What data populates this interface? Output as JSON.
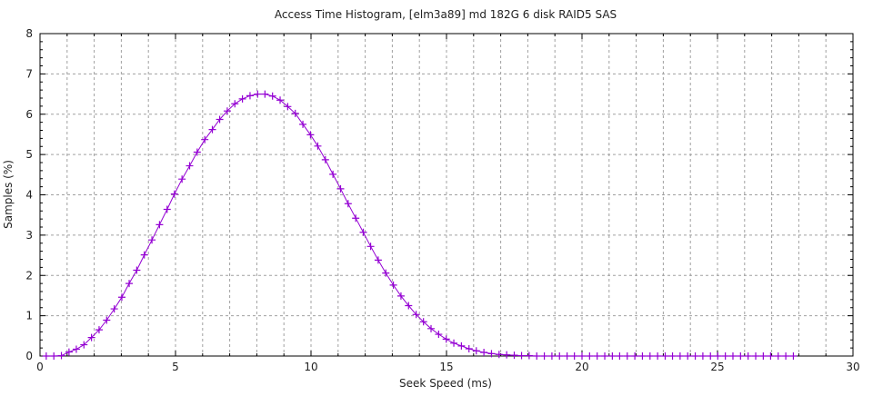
{
  "chart_data": {
    "type": "line",
    "title": "Access Time Histogram, [elm3a89] md 182G 6 disk RAID5 SAS",
    "xlabel": "Seek Speed (ms)",
    "ylabel": "Samples (%)",
    "xlim": [
      0,
      30
    ],
    "ylim": [
      0,
      8
    ],
    "xticks": [
      0,
      5,
      10,
      15,
      20,
      25,
      30
    ],
    "yticks": [
      0,
      1,
      2,
      3,
      4,
      5,
      6,
      7,
      8
    ],
    "grid": true,
    "marker": "plus",
    "color": "#9400d3",
    "series": [
      {
        "x": [
          0.23,
          0.51,
          0.79,
          1.07,
          1.34,
          1.62,
          1.9,
          2.18,
          2.46,
          2.74,
          3.02,
          3.29,
          3.57,
          3.85,
          4.13,
          4.41,
          4.69,
          4.96,
          5.24,
          5.52,
          5.8,
          6.08,
          6.36,
          6.63,
          6.91,
          7.19,
          7.47,
          7.75,
          8.03,
          8.3,
          8.58,
          8.86,
          9.14,
          9.42,
          9.7,
          9.98,
          10.25,
          10.53,
          10.81,
          11.09,
          11.37,
          11.65,
          11.93,
          12.2,
          12.48,
          12.76,
          13.04,
          13.32,
          13.6,
          13.88,
          14.15,
          14.43,
          14.71,
          14.99,
          15.27,
          15.55,
          15.83,
          16.1,
          16.38,
          16.66,
          16.94,
          17.22,
          17.5,
          17.77,
          18.05,
          18.33,
          18.61,
          18.89,
          19.17,
          19.45,
          19.72,
          20.0,
          20.28,
          20.56,
          20.84,
          21.12,
          21.39,
          21.67,
          21.95,
          22.23,
          22.51,
          22.79,
          23.07,
          23.34,
          23.62,
          23.9,
          24.18,
          24.46,
          24.74,
          25.01,
          25.29,
          25.57,
          25.85,
          26.13,
          26.41,
          26.69,
          26.96,
          27.24,
          27.52,
          27.8
        ],
        "y": [
          0.0,
          0.0,
          0.01,
          0.1,
          0.17,
          0.28,
          0.46,
          0.65,
          0.89,
          1.17,
          1.46,
          1.8,
          2.13,
          2.51,
          2.88,
          3.26,
          3.64,
          4.02,
          4.39,
          4.72,
          5.06,
          5.37,
          5.62,
          5.87,
          6.08,
          6.26,
          6.38,
          6.46,
          6.5,
          6.5,
          6.45,
          6.35,
          6.19,
          6.02,
          5.75,
          5.49,
          5.21,
          4.87,
          4.51,
          4.15,
          3.78,
          3.42,
          3.07,
          2.72,
          2.38,
          2.06,
          1.76,
          1.49,
          1.25,
          1.03,
          0.85,
          0.68,
          0.54,
          0.42,
          0.32,
          0.25,
          0.18,
          0.13,
          0.09,
          0.06,
          0.04,
          0.03,
          0.02,
          0.01,
          0.01,
          0,
          0,
          0,
          0,
          0,
          0,
          0,
          0,
          0,
          0,
          0,
          0,
          0,
          0,
          0,
          0,
          0,
          0,
          0,
          0,
          0,
          0,
          0,
          0,
          0,
          0,
          0,
          0,
          0,
          0,
          0,
          0,
          0,
          0,
          0
        ]
      }
    ]
  }
}
